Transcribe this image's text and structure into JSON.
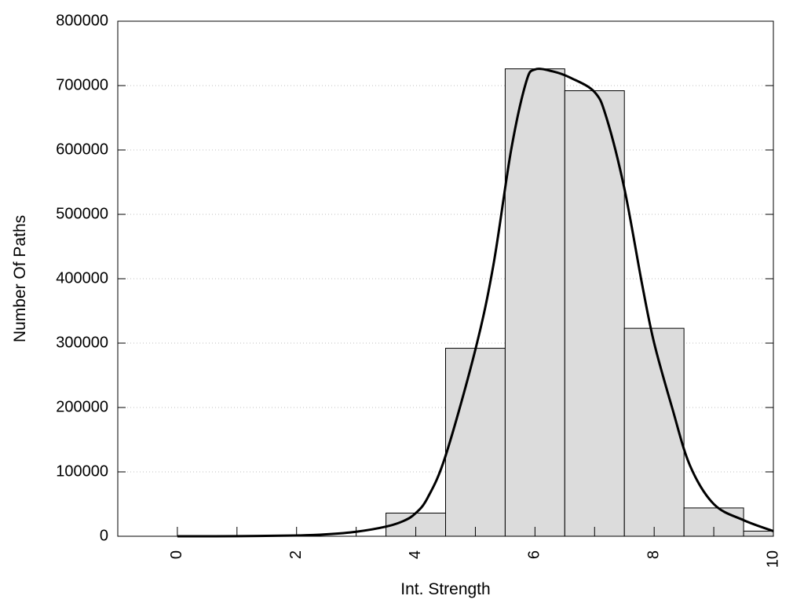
{
  "chart_data": {
    "type": "bar",
    "xlabel": "Int. Strength",
    "ylabel": "Number Of Paths",
    "xlim": [
      -1,
      10
    ],
    "ylim": [
      0,
      800000
    ],
    "x_ticks": [
      0,
      2,
      4,
      6,
      8,
      10
    ],
    "x_tick_labels": [
      "0",
      "2",
      "4",
      "6",
      "8",
      "10"
    ],
    "y_ticks": [
      0,
      100000,
      200000,
      300000,
      400000,
      500000,
      600000,
      700000,
      800000
    ],
    "y_tick_labels": [
      "0",
      "100000",
      "200000",
      "300000",
      "400000",
      "500000",
      "600000",
      "700000",
      "800000"
    ],
    "grid": "horizontal dotted",
    "bar_color": "#dcdcdc",
    "bar_edge_color": "#000000",
    "curve_color": "#000000",
    "bins": [
      {
        "center": 0,
        "value": 0
      },
      {
        "center": 1,
        "value": 0
      },
      {
        "center": 2,
        "value": 0
      },
      {
        "center": 3,
        "value": 0
      },
      {
        "center": 4,
        "value": 36000
      },
      {
        "center": 5,
        "value": 292000
      },
      {
        "center": 6,
        "value": 726000
      },
      {
        "center": 7,
        "value": 692000
      },
      {
        "center": 8,
        "value": 323000
      },
      {
        "center": 9,
        "value": 44000
      },
      {
        "center": 10,
        "value": 8000
      }
    ],
    "curve": [
      {
        "x": 0,
        "y": 0
      },
      {
        "x": 1,
        "y": 200
      },
      {
        "x": 2,
        "y": 1200
      },
      {
        "x": 2.5,
        "y": 3000
      },
      {
        "x": 3,
        "y": 7000
      },
      {
        "x": 3.5,
        "y": 15000
      },
      {
        "x": 3.8,
        "y": 24000
      },
      {
        "x": 4,
        "y": 36000
      },
      {
        "x": 4.2,
        "y": 60000
      },
      {
        "x": 4.5,
        "y": 125000
      },
      {
        "x": 5,
        "y": 290000
      },
      {
        "x": 5.3,
        "y": 420000
      },
      {
        "x": 5.6,
        "y": 600000
      },
      {
        "x": 5.85,
        "y": 705000
      },
      {
        "x": 6,
        "y": 725000
      },
      {
        "x": 6.3,
        "y": 722000
      },
      {
        "x": 6.6,
        "y": 712000
      },
      {
        "x": 7,
        "y": 690000
      },
      {
        "x": 7.2,
        "y": 650000
      },
      {
        "x": 7.5,
        "y": 540000
      },
      {
        "x": 7.8,
        "y": 390000
      },
      {
        "x": 8,
        "y": 300000
      },
      {
        "x": 8.3,
        "y": 200000
      },
      {
        "x": 8.6,
        "y": 110000
      },
      {
        "x": 9,
        "y": 50000
      },
      {
        "x": 9.5,
        "y": 25000
      },
      {
        "x": 10,
        "y": 8000
      }
    ]
  }
}
